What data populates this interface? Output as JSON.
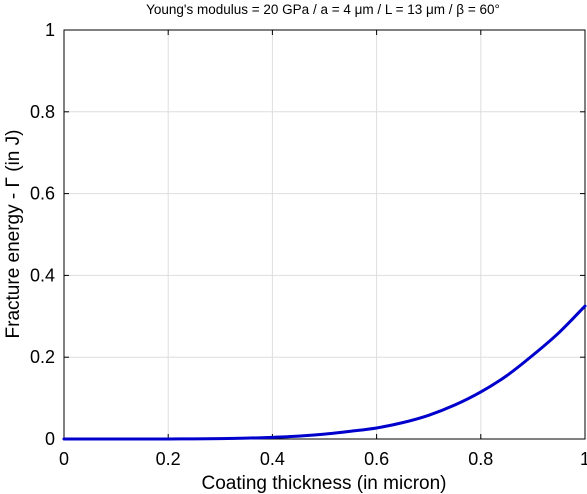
{
  "chart_data": {
    "type": "line",
    "title": "Young's modulus = 20 GPa / a = 4 μm / L = 13 μm / β = 60°",
    "xlabel": "Coating thickness (in micron)",
    "ylabel": "Fracture energy - Γ (in J)",
    "xlim": [
      0,
      1
    ],
    "ylim": [
      0,
      1
    ],
    "xticks": [
      "0",
      "0.2",
      "0.4",
      "0.6",
      "0.8",
      "1"
    ],
    "yticks": [
      "0",
      "0.2",
      "0.4",
      "0.6",
      "0.8",
      "1"
    ],
    "grid": true,
    "series_color": "#0000cc",
    "series": [
      {
        "x": [
          0,
          0.05,
          0.1,
          0.15,
          0.2,
          0.25,
          0.3,
          0.35,
          0.4,
          0.45,
          0.5,
          0.55,
          0.6,
          0.65,
          0.7,
          0.75,
          0.8,
          0.85,
          0.9,
          0.95,
          1.0
        ],
        "y": [
          0,
          0,
          0,
          0,
          0,
          0.0004,
          0.001,
          0.002,
          0.004,
          0.007,
          0.012,
          0.019,
          0.027,
          0.04,
          0.058,
          0.083,
          0.115,
          0.155,
          0.205,
          0.26,
          0.325
        ]
      }
    ]
  }
}
